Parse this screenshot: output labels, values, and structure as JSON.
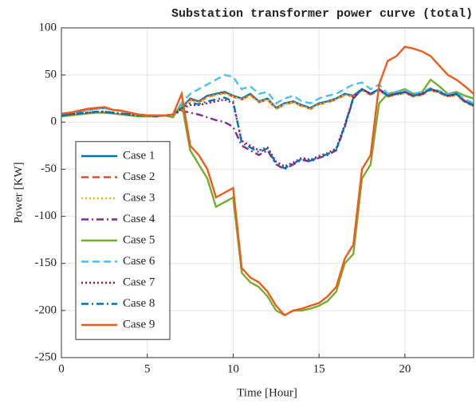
{
  "chart_data": {
    "type": "line",
    "title": "Substation transformer power curve (total)",
    "x_label": "Time [Hour]",
    "y_label": "Power [KW]",
    "xlim": [
      0,
      24
    ],
    "ylim": [
      -250,
      100
    ],
    "xticks": [
      0,
      5,
      10,
      15,
      20
    ],
    "yticks": [
      -250,
      -200,
      -150,
      -100,
      -50,
      0,
      50,
      100
    ],
    "grid": true,
    "legend": "center left",
    "x": [
      0,
      0.5,
      1,
      1.5,
      2,
      2.5,
      3,
      3.5,
      4,
      4.5,
      5,
      5.5,
      6,
      6.5,
      7,
      7.5,
      8,
      8.5,
      9,
      9.5,
      10,
      10.5,
      11,
      11.5,
      12,
      12.5,
      13,
      13.5,
      14,
      14.5,
      15,
      15.5,
      16,
      16.5,
      17,
      17.5,
      18,
      18.5,
      19,
      19.5,
      20,
      20.5,
      21,
      21.5,
      22,
      22.5,
      23,
      23.5,
      24
    ],
    "series": [
      {
        "name": "Case 1",
        "color": "#0072bd",
        "dash": "solid",
        "values": [
          8,
          9,
          11,
          13,
          14,
          15,
          13,
          12,
          10,
          8,
          7,
          7,
          7,
          8,
          15,
          25,
          22,
          28,
          30,
          32,
          28,
          25,
          30,
          22,
          25,
          15,
          20,
          22,
          18,
          15,
          20,
          22,
          25,
          30,
          28,
          35,
          30,
          35,
          28,
          30,
          32,
          28,
          30,
          35,
          32,
          28,
          30,
          22,
          18
        ]
      },
      {
        "name": "Case 2",
        "color": "#d95319",
        "dash": "dashed",
        "values": [
          8,
          9,
          11,
          13,
          14,
          15,
          13,
          12,
          10,
          8,
          7,
          7,
          7,
          8,
          14,
          24,
          21,
          27,
          29,
          31,
          27,
          24,
          29,
          21,
          24,
          14,
          19,
          21,
          17,
          14,
          19,
          21,
          24,
          29,
          27,
          34,
          29,
          34,
          27,
          29,
          31,
          27,
          29,
          34,
          31,
          27,
          29,
          21,
          17
        ]
      },
      {
        "name": "Case 3",
        "color": "#edb120",
        "dash": "dotted",
        "values": [
          8,
          9,
          11,
          13,
          14,
          15,
          13,
          12,
          10,
          8,
          7,
          7,
          7,
          8,
          14,
          23,
          21,
          26,
          29,
          30,
          27,
          24,
          28,
          21,
          24,
          14,
          19,
          21,
          17,
          14,
          19,
          21,
          24,
          29,
          27,
          34,
          29,
          34,
          27,
          29,
          31,
          27,
          29,
          34,
          31,
          27,
          29,
          21,
          17
        ]
      },
      {
        "name": "Case 4",
        "color": "#7e2f8e",
        "dash": "dashdot",
        "values": [
          7,
          8,
          9,
          10,
          11,
          11,
          10,
          9,
          8,
          7,
          7,
          6,
          7,
          8,
          12,
          10,
          8,
          5,
          2,
          0,
          -5,
          -25,
          -30,
          -35,
          -30,
          -45,
          -50,
          -45,
          -40,
          -42,
          -38,
          -35,
          -30,
          -5,
          25,
          35,
          30,
          35,
          28,
          30,
          32,
          28,
          30,
          35,
          32,
          28,
          30,
          22,
          18
        ]
      },
      {
        "name": "Case 5",
        "color": "#77ac30",
        "dash": "solid",
        "values": [
          6,
          7,
          8,
          9,
          10,
          10,
          9,
          8,
          7,
          6,
          6,
          6,
          7,
          5,
          20,
          -30,
          -45,
          -60,
          -90,
          -85,
          -80,
          -160,
          -170,
          -175,
          -185,
          -200,
          -205,
          -200,
          -200,
          -198,
          -195,
          -190,
          -180,
          -150,
          -140,
          -60,
          -45,
          20,
          30,
          32,
          35,
          30,
          32,
          45,
          38,
          30,
          32,
          28,
          25
        ]
      },
      {
        "name": "Case 6",
        "color": "#4dbeee",
        "dash": "dashed",
        "values": [
          8,
          9,
          11,
          13,
          14,
          15,
          13,
          12,
          10,
          8,
          7,
          7,
          7,
          8,
          20,
          30,
          35,
          40,
          45,
          50,
          48,
          35,
          38,
          30,
          32,
          20,
          25,
          28,
          22,
          20,
          25,
          28,
          30,
          35,
          40,
          42,
          35,
          40,
          30,
          32,
          34,
          30,
          32,
          36,
          33,
          30,
          31,
          24,
          20
        ]
      },
      {
        "name": "Case 7",
        "color": "#a2142f",
        "dash": "dotted",
        "values": [
          7,
          8,
          9,
          10,
          11,
          11,
          10,
          9,
          8,
          7,
          7,
          6,
          7,
          8,
          14,
          18,
          18,
          20,
          22,
          24,
          20,
          -20,
          -25,
          -30,
          -27,
          -42,
          -47,
          -43,
          -38,
          -40,
          -36,
          -33,
          -28,
          -3,
          26,
          35,
          30,
          35,
          28,
          30,
          32,
          28,
          30,
          35,
          32,
          28,
          30,
          22,
          18
        ]
      },
      {
        "name": "Case 8",
        "color": "#0072bd",
        "dash": "dashdot",
        "values": [
          7,
          8,
          9,
          10,
          11,
          11,
          10,
          9,
          8,
          7,
          7,
          6,
          7,
          8,
          15,
          20,
          19,
          22,
          24,
          26,
          22,
          -22,
          -27,
          -32,
          -28,
          -44,
          -49,
          -44,
          -39,
          -41,
          -37,
          -34,
          -29,
          -4,
          26,
          35,
          30,
          35,
          28,
          30,
          32,
          28,
          30,
          35,
          32,
          28,
          30,
          22,
          18
        ]
      },
      {
        "name": "Case 9",
        "color": "#f05a1a",
        "dash": "solid",
        "values": [
          9,
          10,
          12,
          14,
          15,
          16,
          13,
          12,
          10,
          8,
          7,
          7,
          7,
          8,
          30,
          -25,
          -35,
          -50,
          -80,
          -75,
          -70,
          -155,
          -165,
          -170,
          -180,
          -195,
          -205,
          -200,
          -198,
          -195,
          -192,
          -185,
          -175,
          -145,
          -130,
          -50,
          -35,
          40,
          65,
          70,
          80,
          78,
          75,
          70,
          60,
          50,
          45,
          38,
          30
        ]
      }
    ]
  }
}
